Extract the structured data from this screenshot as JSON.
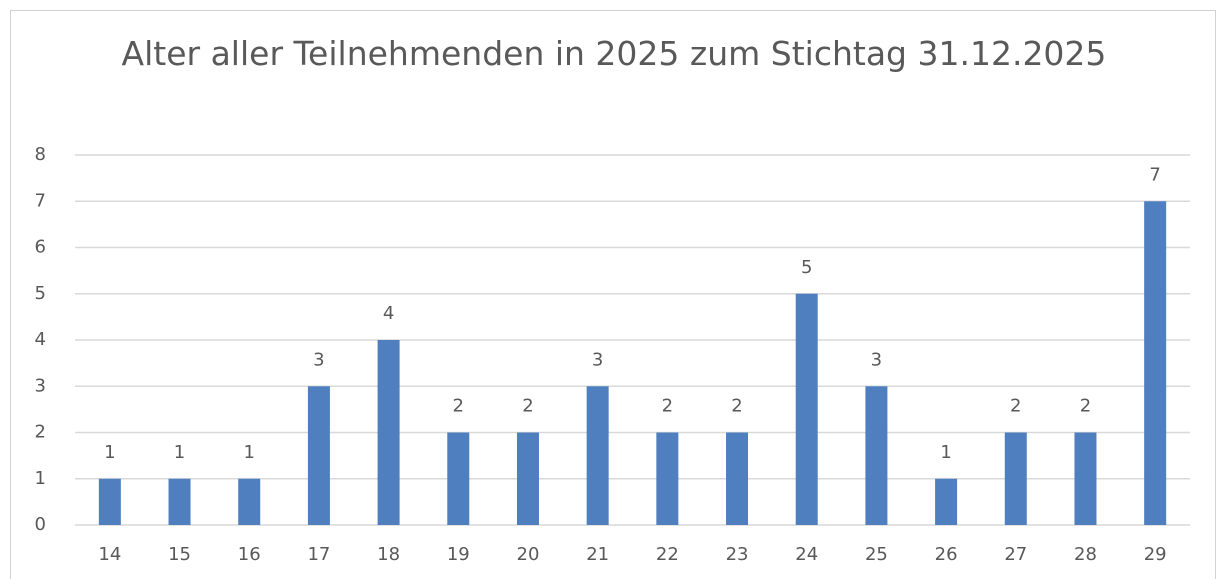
{
  "chart_data": {
    "type": "bar",
    "title": "Alter aller Teilnehmenden in 2025 zum Stichtag 31.12.2025",
    "categories": [
      "14",
      "15",
      "16",
      "17",
      "18",
      "19",
      "20",
      "21",
      "22",
      "23",
      "24",
      "25",
      "26",
      "27",
      "28",
      "29"
    ],
    "values": [
      1,
      1,
      1,
      3,
      4,
      2,
      2,
      3,
      2,
      2,
      5,
      3,
      1,
      2,
      2,
      7
    ],
    "color": "#4f7fbe",
    "ylim": [
      0,
      8
    ],
    "yticks": [
      0,
      1,
      2,
      3,
      4,
      5,
      6,
      7,
      8
    ],
    "grid": true,
    "data_labels": true
  }
}
